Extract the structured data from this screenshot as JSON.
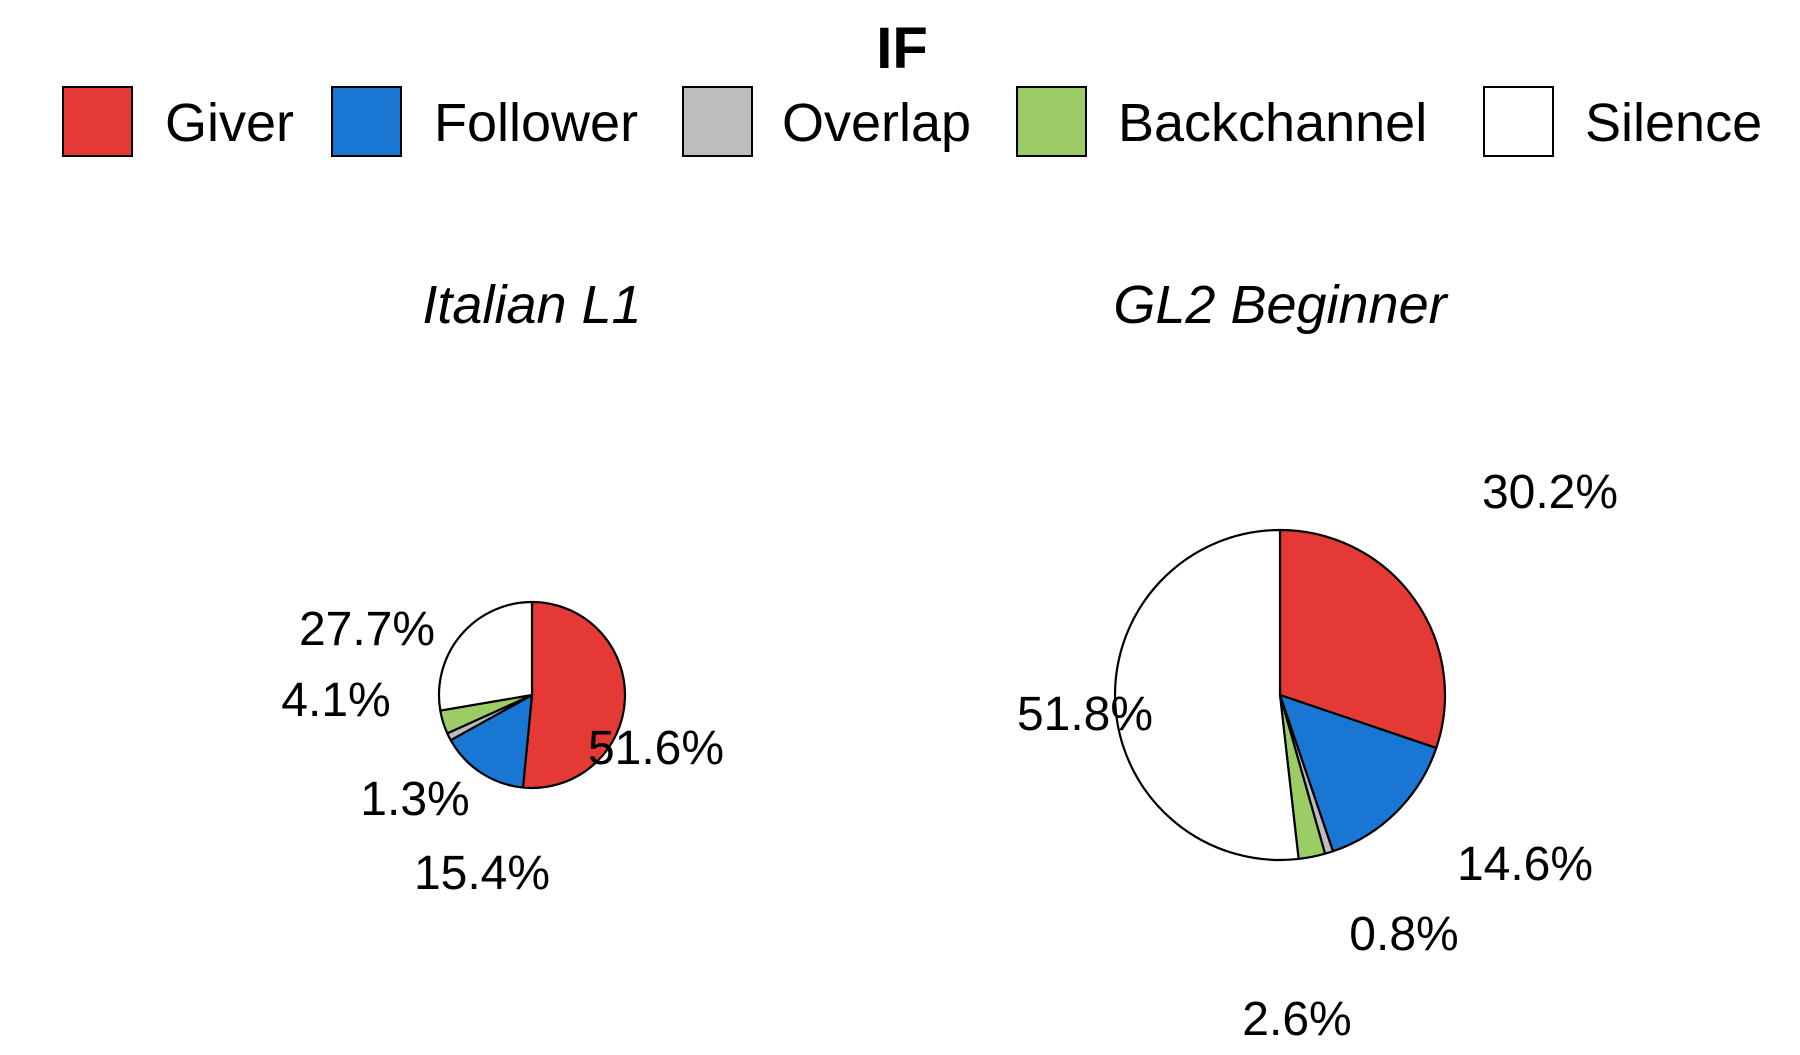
{
  "chart_data": {
    "type": "pie",
    "title": "IF",
    "legend": {
      "placement": "top",
      "entries": [
        {
          "label": "Giver",
          "color": "#e53935"
        },
        {
          "label": "Follower",
          "color": "#1976d2"
        },
        {
          "label": "Overlap",
          "color": "#bdbdbd"
        },
        {
          "label": "Backchannel",
          "color": "#9ccc65"
        },
        {
          "label": "Silence",
          "color": "#ffffff"
        }
      ]
    },
    "categories": [
      "Giver",
      "Follower",
      "Overlap",
      "Backchannel",
      "Silence"
    ],
    "pies": [
      {
        "name": "Italian L1",
        "values": [
          51.6,
          15.4,
          1.3,
          4.1,
          27.7
        ],
        "labels": [
          "51.6%",
          "15.4%",
          "1.3%",
          "4.1%",
          "27.7%"
        ]
      },
      {
        "name": "GL2 Beginner",
        "values": [
          30.2,
          14.6,
          0.8,
          2.6,
          51.8
        ],
        "labels": [
          "30.2%",
          "14.6%",
          "0.8%",
          "2.6%",
          "51.8%"
        ]
      }
    ]
  }
}
